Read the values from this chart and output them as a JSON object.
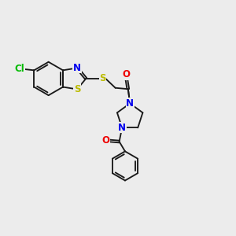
{
  "background_color": "#ececec",
  "bond_color": "#1a1a1a",
  "atom_colors": {
    "N": "#0000ee",
    "O": "#ee0000",
    "S": "#bbbb00",
    "Cl": "#00bb00",
    "C": "#1a1a1a"
  },
  "font_size": 8.5,
  "figsize": [
    3.0,
    3.0
  ],
  "dpi": 100,
  "lw": 1.35
}
